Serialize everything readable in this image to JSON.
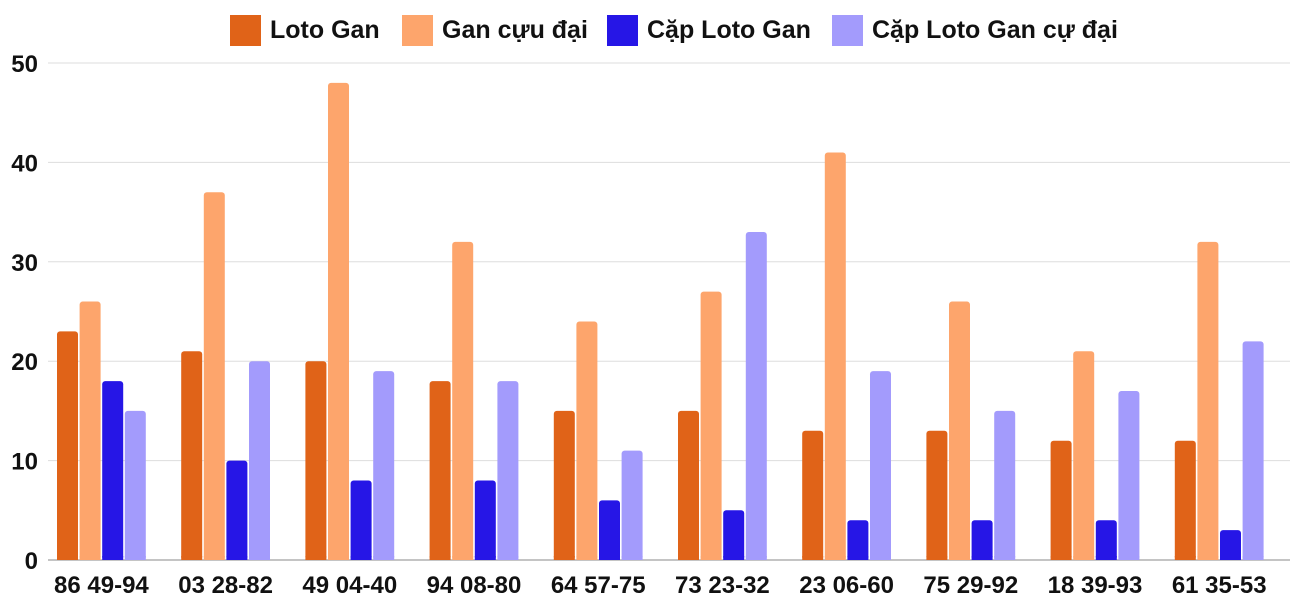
{
  "chart_data": {
    "type": "bar",
    "title": "",
    "xlabel": "",
    "ylabel": "",
    "ylim": [
      0,
      50
    ],
    "yticks": [
      "0",
      "10",
      "20",
      "30",
      "40",
      "50"
    ],
    "grid": true,
    "legend_position": "top",
    "categories": [
      "86 49-94",
      "03 28-82",
      "49 04-40",
      "94 08-80",
      "64 57-75",
      "73 23-32",
      "23 06-60",
      "75 29-92",
      "18 39-93",
      "61 35-53"
    ],
    "series": [
      {
        "name": "Loto Gan",
        "color": "#e06318",
        "values": [
          23,
          21,
          20,
          18,
          15,
          15,
          13,
          13,
          12,
          12
        ]
      },
      {
        "name": "Gan cựu đại",
        "color": "#fda56c",
        "values": [
          26,
          37,
          48,
          32,
          24,
          27,
          41,
          26,
          21,
          32
        ]
      },
      {
        "name": "Cặp Loto Gan",
        "color": "#2616e6",
        "values": [
          18,
          10,
          8,
          8,
          6,
          5,
          4,
          4,
          4,
          3
        ]
      },
      {
        "name": "Cặp Loto Gan cự đại",
        "color": "#a39bfc",
        "values": [
          15,
          20,
          19,
          18,
          11,
          33,
          19,
          15,
          17,
          22
        ]
      }
    ]
  }
}
